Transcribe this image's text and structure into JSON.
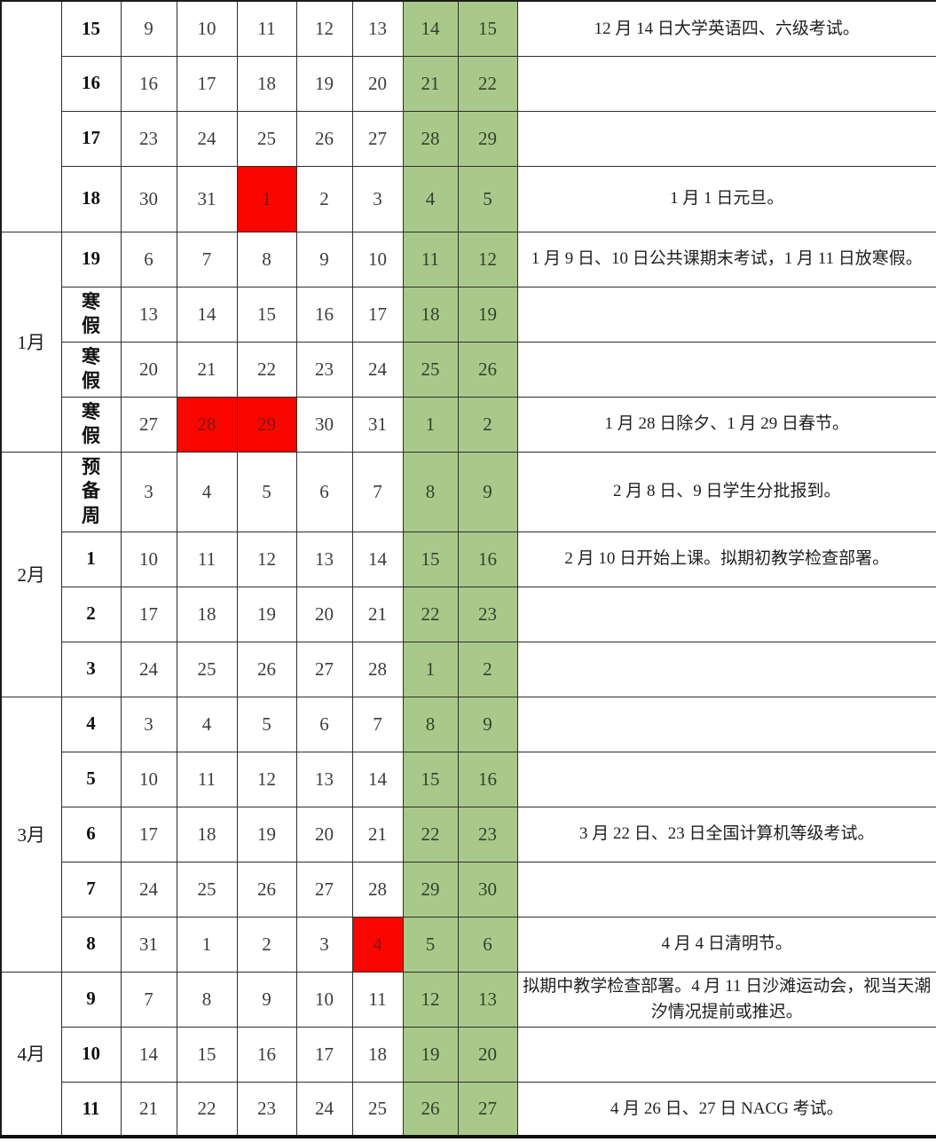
{
  "colors": {
    "weekend_bg": "#a9c98a",
    "weekend_text": "#33402c",
    "holiday_bg": "#fa0500",
    "holiday_text": "#7e1a12",
    "grid_line": "#2e2e2e"
  },
  "calendar": {
    "weekend_columns": [
      5,
      6
    ],
    "months": [
      {
        "label": "",
        "row_span": 4
      },
      {
        "label": "1月",
        "row_span": 4
      },
      {
        "label": "2月",
        "row_span": 4
      },
      {
        "label": "3月",
        "row_span": 5
      },
      {
        "label": "4月",
        "row_span": 3
      }
    ],
    "rows": [
      {
        "week": "15",
        "days": [
          "9",
          "10",
          "11",
          "12",
          "13",
          "14",
          "15"
        ],
        "holiday_days": [],
        "note": "12 月 14 日大学英语四、六级考试。"
      },
      {
        "week": "16",
        "days": [
          "16",
          "17",
          "18",
          "19",
          "20",
          "21",
          "22"
        ],
        "holiday_days": [],
        "note": ""
      },
      {
        "week": "17",
        "days": [
          "23",
          "24",
          "25",
          "26",
          "27",
          "28",
          "29"
        ],
        "holiday_days": [],
        "note": ""
      },
      {
        "week": "18",
        "days": [
          "30",
          "31",
          "1",
          "2",
          "3",
          "4",
          "5"
        ],
        "holiday_days": [
          2
        ],
        "note": "1 月 1 日元旦。"
      },
      {
        "week": "19",
        "days": [
          "6",
          "7",
          "8",
          "9",
          "10",
          "11",
          "12"
        ],
        "holiday_days": [],
        "note": "1 月 9 日、10 日公共课期末考试，1 月 11 日放寒假。"
      },
      {
        "week": "寒假",
        "days": [
          "13",
          "14",
          "15",
          "16",
          "17",
          "18",
          "19"
        ],
        "holiday_days": [],
        "note": ""
      },
      {
        "week": "寒假",
        "days": [
          "20",
          "21",
          "22",
          "23",
          "24",
          "25",
          "26"
        ],
        "holiday_days": [],
        "note": ""
      },
      {
        "week": "寒假",
        "days": [
          "27",
          "28",
          "29",
          "30",
          "31",
          "1",
          "2"
        ],
        "holiday_days": [
          1,
          2
        ],
        "note": "1 月 28 日除夕、1 月 29 日春节。"
      },
      {
        "week": "预备周",
        "days": [
          "3",
          "4",
          "5",
          "6",
          "7",
          "8",
          "9"
        ],
        "holiday_days": [],
        "note": "2 月 8 日、9 日学生分批报到。"
      },
      {
        "week": "1",
        "days": [
          "10",
          "11",
          "12",
          "13",
          "14",
          "15",
          "16"
        ],
        "holiday_days": [],
        "note": "2 月 10 日开始上课。拟期初教学检查部署。"
      },
      {
        "week": "2",
        "days": [
          "17",
          "18",
          "19",
          "20",
          "21",
          "22",
          "23"
        ],
        "holiday_days": [],
        "note": ""
      },
      {
        "week": "3",
        "days": [
          "24",
          "25",
          "26",
          "27",
          "28",
          "1",
          "2"
        ],
        "holiday_days": [],
        "note": ""
      },
      {
        "week": "4",
        "days": [
          "3",
          "4",
          "5",
          "6",
          "7",
          "8",
          "9"
        ],
        "holiday_days": [],
        "note": ""
      },
      {
        "week": "5",
        "days": [
          "10",
          "11",
          "12",
          "13",
          "14",
          "15",
          "16"
        ],
        "holiday_days": [],
        "note": ""
      },
      {
        "week": "6",
        "days": [
          "17",
          "18",
          "19",
          "20",
          "21",
          "22",
          "23"
        ],
        "holiday_days": [],
        "note": "3 月 22 日、23 日全国计算机等级考试。"
      },
      {
        "week": "7",
        "days": [
          "24",
          "25",
          "26",
          "27",
          "28",
          "29",
          "30"
        ],
        "holiday_days": [],
        "note": ""
      },
      {
        "week": "8",
        "days": [
          "31",
          "1",
          "2",
          "3",
          "4",
          "5",
          "6"
        ],
        "holiday_days": [
          4
        ],
        "note": "4 月 4 日清明节。"
      },
      {
        "week": "9",
        "days": [
          "7",
          "8",
          "9",
          "10",
          "11",
          "12",
          "13"
        ],
        "holiday_days": [],
        "note": "拟期中教学检查部署。4 月 11 日沙滩运动会，视当天潮汐情况提前或推迟。"
      },
      {
        "week": "10",
        "days": [
          "14",
          "15",
          "16",
          "17",
          "18",
          "19",
          "20"
        ],
        "holiday_days": [],
        "note": ""
      },
      {
        "week": "11",
        "days": [
          "21",
          "22",
          "23",
          "24",
          "25",
          "26",
          "27"
        ],
        "holiday_days": [],
        "note": "4 月 26 日、27 日 NACG 考试。"
      }
    ]
  }
}
